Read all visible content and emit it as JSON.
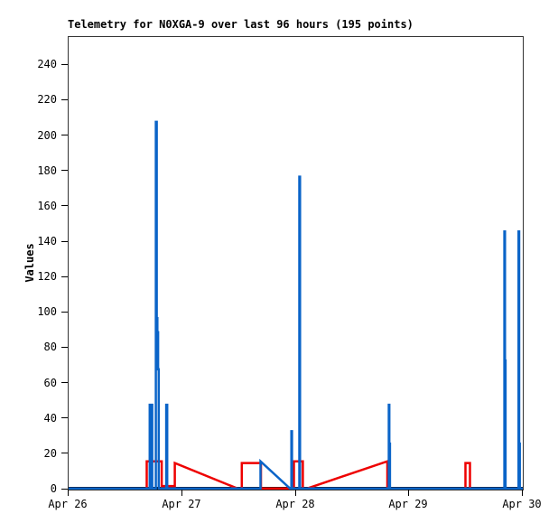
{
  "title": "Telemetry for N0XGA-9 over last 96 hours (195 points)",
  "chart_data": {
    "type": "line",
    "title": "Telemetry for N0XGA-9 over last 96 hours (195 points)",
    "xlabel": "",
    "ylabel": "Values",
    "ylim": [
      0,
      256
    ],
    "yticks": [
      0,
      20,
      40,
      60,
      80,
      100,
      120,
      140,
      160,
      180,
      200,
      220,
      240
    ],
    "xtick_labels": [
      "Apr 26",
      "Apr 27",
      "Apr 28",
      "Apr 29",
      "Apr 30"
    ],
    "x_range_days": 4,
    "grid": false,
    "legend": "none",
    "frame_color": "#333333",
    "background": "#ffffff",
    "series": [
      {
        "name": "black",
        "color": "#000000",
        "stroke_width": 3,
        "points": [
          [
            0,
            0
          ],
          [
            4,
            0
          ]
        ]
      },
      {
        "name": "red",
        "color": "#ee0000",
        "stroke_width": 2.5,
        "points": [
          [
            0,
            0
          ],
          [
            0.688,
            0
          ],
          [
            0.688,
            16
          ],
          [
            0.82,
            16
          ],
          [
            0.82,
            2
          ],
          [
            0.935,
            2
          ],
          [
            0.935,
            15
          ],
          [
            1.487,
            0
          ],
          [
            1.525,
            0
          ],
          [
            1.525,
            15
          ],
          [
            1.694,
            15
          ],
          [
            1.694,
            0
          ],
          [
            1.984,
            0
          ],
          [
            1.984,
            16
          ],
          [
            2.063,
            16
          ],
          [
            2.063,
            0
          ],
          [
            2.1,
            0
          ],
          [
            2.807,
            16
          ],
          [
            2.807,
            0
          ],
          [
            3.495,
            0
          ],
          [
            3.495,
            15
          ],
          [
            3.535,
            15
          ],
          [
            3.535,
            0
          ],
          [
            4,
            0
          ]
        ]
      },
      {
        "name": "blue",
        "color": "#0a64c8",
        "stroke_width": 2.5,
        "points": [
          [
            0,
            0
          ],
          [
            0.69,
            0
          ],
          [
            0.714,
            0
          ],
          [
            0.714,
            48
          ],
          [
            0.72,
            48
          ],
          [
            0.72,
            0
          ],
          [
            0.73,
            0
          ],
          [
            0.73,
            48
          ],
          [
            0.736,
            48
          ],
          [
            0.736,
            0
          ],
          [
            0.768,
            0
          ],
          [
            0.768,
            208
          ],
          [
            0.776,
            208
          ],
          [
            0.776,
            97
          ],
          [
            0.782,
            97
          ],
          [
            0.782,
            89
          ],
          [
            0.788,
            89
          ],
          [
            0.788,
            68
          ],
          [
            0.794,
            68
          ],
          [
            0.794,
            0
          ],
          [
            0.86,
            0
          ],
          [
            0.86,
            48
          ],
          [
            0.868,
            48
          ],
          [
            0.868,
            0
          ],
          [
            1.69,
            0
          ],
          [
            1.69,
            16
          ],
          [
            1.95,
            0
          ],
          [
            1.962,
            0
          ],
          [
            1.962,
            33
          ],
          [
            1.967,
            33
          ],
          [
            1.967,
            0
          ],
          [
            2.032,
            0
          ],
          [
            2.032,
            177
          ],
          [
            2.038,
            177
          ],
          [
            2.038,
            0
          ],
          [
            2.82,
            0
          ],
          [
            2.82,
            48
          ],
          [
            2.825,
            48
          ],
          [
            2.825,
            26
          ],
          [
            2.83,
            26
          ],
          [
            2.83,
            0
          ],
          [
            3.838,
            0
          ],
          [
            3.838,
            146
          ],
          [
            3.843,
            146
          ],
          [
            3.843,
            73
          ],
          [
            3.848,
            73
          ],
          [
            3.848,
            0
          ],
          [
            3.963,
            0
          ],
          [
            3.963,
            146
          ],
          [
            3.968,
            146
          ],
          [
            3.968,
            26
          ],
          [
            3.974,
            26
          ],
          [
            3.974,
            0
          ],
          [
            4,
            0
          ]
        ]
      }
    ]
  }
}
